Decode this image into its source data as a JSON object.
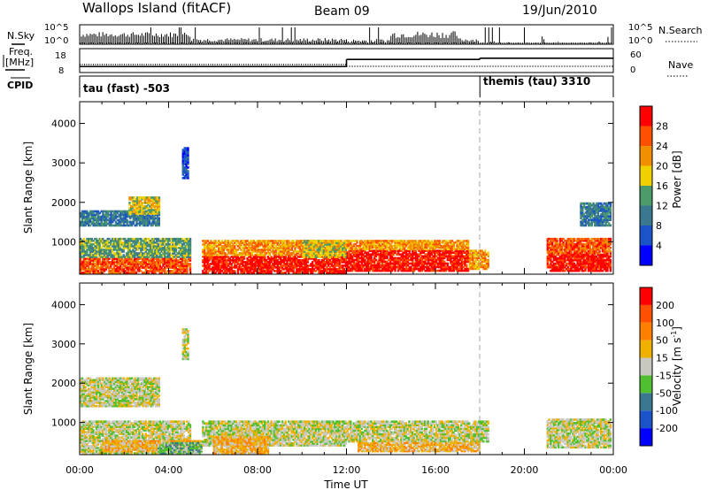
{
  "header": {
    "station": "Wallops Island (fitACF)",
    "beam": "Beam 09",
    "date": "19/Jun/2010"
  },
  "top_panels": {
    "nsky_label": "N.Sky",
    "nsky_ticks": [
      "10^5",
      "10^0"
    ],
    "nsearch_label": "N.Search",
    "nsearch_ticks": [
      "10^5",
      "10^0"
    ],
    "freq_label_1": "Freq.",
    "freq_label_2": "[MHz]",
    "freq_ticks": [
      "18",
      "8"
    ],
    "nave_label": "Nave",
    "nave_ticks": [
      "60",
      "0"
    ],
    "cpid_label": "CPID",
    "cpid_segments": [
      {
        "label": "tau (fast) -503",
        "start_hour": 0,
        "end_hour": 18
      },
      {
        "label": "themis (tau) 3310",
        "start_hour": 18,
        "end_hour": 24
      }
    ],
    "freq_steps": [
      {
        "start_hour": 0,
        "end_hour": 12,
        "freq_mhz": 10.5
      },
      {
        "start_hour": 12,
        "end_hour": 18,
        "freq_mhz": 13.5
      },
      {
        "start_hour": 18,
        "end_hour": 24,
        "freq_mhz": 14.0
      }
    ]
  },
  "chart_data": [
    {
      "type": "heatmap",
      "quantity": "power",
      "ylabel": "Slant Range [km]",
      "yticks": [
        "1000",
        "2000",
        "3000",
        "4000"
      ],
      "ylim": [
        180,
        4550
      ],
      "xlim": [
        0,
        24
      ],
      "colorbar": {
        "label": "Power [dB]",
        "ticks": [
          "4",
          "8",
          "12",
          "16",
          "20",
          "24",
          "28"
        ],
        "colors": [
          "#0000ff",
          "#1a54c8",
          "#3a7890",
          "#4a9a6a",
          "#f0d000",
          "#f09000",
          "#ff5000",
          "#ff0000"
        ]
      },
      "regions": [
        {
          "t0": 0.0,
          "t1": 5.0,
          "r0": 200,
          "r1": 600,
          "level": 6
        },
        {
          "t0": 0.0,
          "t1": 5.0,
          "r0": 600,
          "r1": 1100,
          "level": 3
        },
        {
          "t0": 0.0,
          "t1": 3.6,
          "r0": 1400,
          "r1": 1800,
          "level": 2
        },
        {
          "t0": 2.2,
          "t1": 3.6,
          "r0": 1700,
          "r1": 2150,
          "level": 4
        },
        {
          "t0": 5.5,
          "t1": 12.0,
          "r0": 200,
          "r1": 650,
          "level": 7
        },
        {
          "t0": 5.5,
          "t1": 12.0,
          "r0": 650,
          "r1": 1050,
          "level": 5
        },
        {
          "t0": 10.0,
          "t1": 12.0,
          "r0": 600,
          "r1": 1050,
          "level": 4
        },
        {
          "t0": 12.0,
          "t1": 17.5,
          "r0": 250,
          "r1": 800,
          "level": 7
        },
        {
          "t0": 12.0,
          "t1": 17.5,
          "r0": 800,
          "r1": 1050,
          "level": 5
        },
        {
          "t0": 17.5,
          "t1": 18.4,
          "r0": 300,
          "r1": 800,
          "level": 5
        },
        {
          "t0": 21.0,
          "t1": 23.9,
          "r0": 250,
          "r1": 700,
          "level": 7
        },
        {
          "t0": 21.0,
          "t1": 23.9,
          "r0": 700,
          "r1": 1100,
          "level": 6
        },
        {
          "t0": 22.5,
          "t1": 23.9,
          "r0": 1400,
          "r1": 2000,
          "level": 2
        },
        {
          "t0": 4.6,
          "t1": 4.9,
          "r0": 2600,
          "r1": 3400,
          "level": 1
        }
      ]
    },
    {
      "type": "heatmap",
      "quantity": "velocity",
      "ylabel": "Slant Range [km]",
      "yticks": [
        "1000",
        "2000",
        "3000",
        "4000"
      ],
      "ylim": [
        180,
        4550
      ],
      "xlim": [
        0,
        24
      ],
      "xticks": [
        "00:00",
        "04:00",
        "08:00",
        "12:00",
        "16:00",
        "20:00",
        "00:00"
      ],
      "xlabel": "Time UT",
      "colorbar": {
        "label": "Velocity [m s-1]",
        "label_main": "Velocity [",
        "label_unit": "m s",
        "label_exp": "-1",
        "label_end": "]",
        "ticks": [
          "200",
          "100",
          "50",
          "15",
          "-15",
          "-50",
          "-100",
          "-200"
        ],
        "colors": [
          "#0000ff",
          "#1a54c8",
          "#3a7890",
          "#50c030",
          "#c8c8c0",
          "#f0b000",
          "#ff8000",
          "#ff5000",
          "#ff0000"
        ]
      },
      "regions": [
        {
          "t0": 0.0,
          "t1": 5.0,
          "r0": 200,
          "r1": 1050,
          "level": 4
        },
        {
          "t0": 0.0,
          "t1": 3.6,
          "r0": 1400,
          "r1": 2150,
          "level": 4
        },
        {
          "t0": 1.0,
          "t1": 5.5,
          "r0": 250,
          "r1": 550,
          "level": 5
        },
        {
          "t0": 3.5,
          "t1": 5.5,
          "r0": 200,
          "r1": 500,
          "level": 3
        },
        {
          "t0": 5.5,
          "t1": 12.0,
          "r0": 400,
          "r1": 1050,
          "level": 4
        },
        {
          "t0": 6.0,
          "t1": 8.5,
          "r0": 200,
          "r1": 650,
          "level": 5
        },
        {
          "t0": 12.0,
          "t1": 18.4,
          "r0": 500,
          "r1": 1050,
          "level": 4
        },
        {
          "t0": 12.5,
          "t1": 18.0,
          "r0": 250,
          "r1": 500,
          "level": 5
        },
        {
          "t0": 21.0,
          "t1": 23.9,
          "r0": 350,
          "r1": 1100,
          "level": 4
        },
        {
          "t0": 4.6,
          "t1": 4.9,
          "r0": 2600,
          "r1": 3400,
          "level": 4
        }
      ]
    }
  ]
}
